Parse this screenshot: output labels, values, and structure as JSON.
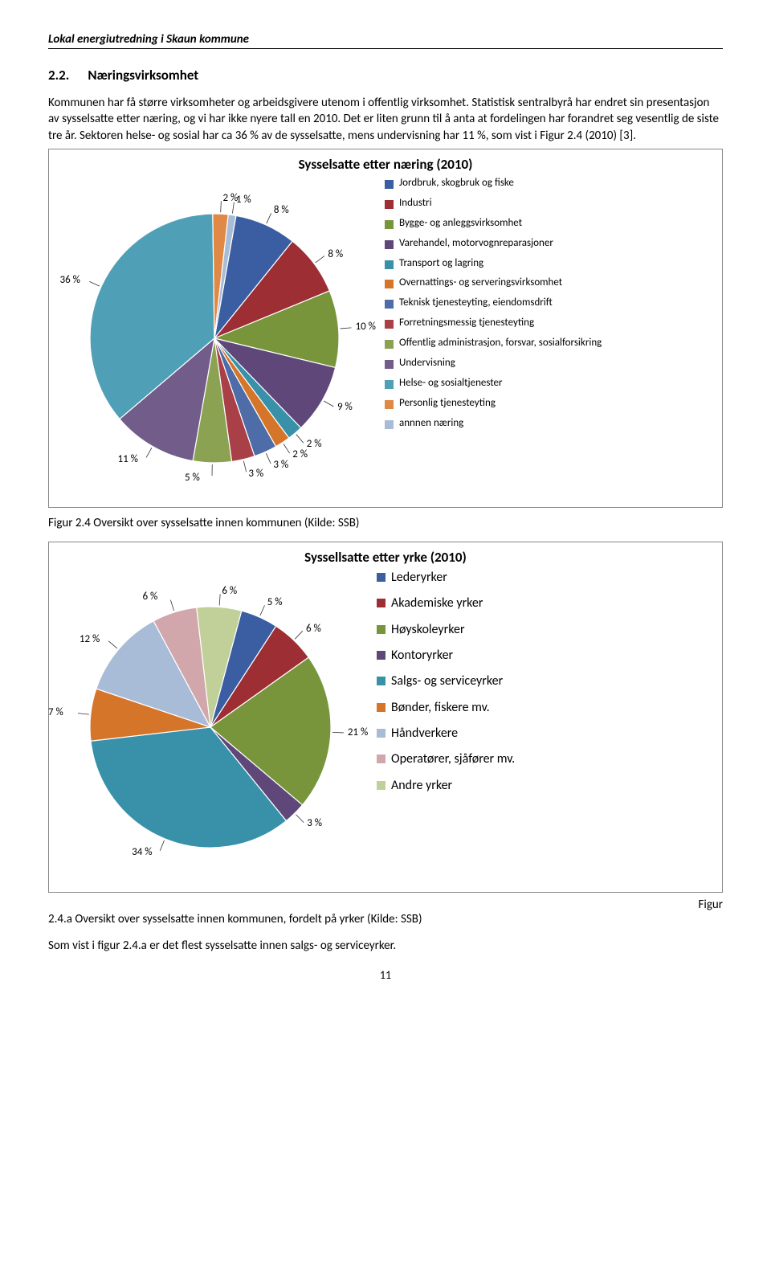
{
  "header": "Lokal energiutredning i Skaun kommune",
  "section_number": "2.2.",
  "section_title": "Næringsvirksomhet",
  "paragraph": "Kommunen har få større virksomheter og arbeidsgivere utenom i offentlig virksomhet. Statistisk sentralbyrå har endret sin presentasjon av sysselsatte etter næring, og vi har ikke nyere tall en 2010. Det er liten grunn til å anta at fordelingen har forandret seg vesentlig de siste tre år. Sektoren helse- og sosial har ca 36 % av de sysselsatte, mens undervisning har 11 %, som vist i Figur 2.4 (2010) [3].",
  "chart1": {
    "title": "Sysselsatte etter næring (2010)",
    "type": "pie",
    "background_color": "#ffffff",
    "slices": [
      {
        "label": "Jordbruk, skogbruk og fiske",
        "value": 8,
        "color": "#3a5ea1",
        "pct_label": "8 %"
      },
      {
        "label": "Industri",
        "value": 8,
        "color": "#9c2e34",
        "pct_label": "8 %"
      },
      {
        "label": "Bygge- og anleggsvirksomhet",
        "value": 10,
        "color": "#78953c",
        "pct_label": "10 %"
      },
      {
        "label": "Varehandel, motorvognreparasjoner",
        "value": 9,
        "color": "#5f4879",
        "pct_label": "9 %"
      },
      {
        "label": "Transport og lagring",
        "value": 2,
        "color": "#3891a8",
        "pct_label": "2 %"
      },
      {
        "label": "Overnattings- og serveringsvirksomhet",
        "value": 2,
        "color": "#d5752a",
        "pct_label": "2 %"
      },
      {
        "label": "Teknisk tjenesteyting, eiendomsdrift",
        "value": 3,
        "color": "#4e6ca8",
        "pct_label": "3 %"
      },
      {
        "label": "Forretningsmessig tjenesteyting",
        "value": 3,
        "color": "#a94048",
        "pct_label": "3 %"
      },
      {
        "label": "Offentlig administrasjon, forsvar, sosialforsikring",
        "value": 5,
        "color": "#8aa251",
        "pct_label": "5 %"
      },
      {
        "label": "Undervisning",
        "value": 11,
        "color": "#715c8a",
        "pct_label": "11 %"
      },
      {
        "label": "Helse- og sosialtjenester",
        "value": 36,
        "color": "#4fa0b6",
        "pct_label": "36 %"
      },
      {
        "label": "Personlig tjenesteyting",
        "value": 2,
        "color": "#e08846",
        "pct_label": "2 %"
      },
      {
        "label": "annnen næring",
        "value": 1,
        "color": "#a9bcd7",
        "pct_label": "1 %"
      }
    ]
  },
  "caption1": "Figur 2.4 Oversikt over sysselsatte innen kommunen (Kilde: SSB)",
  "chart2": {
    "title": "Syssellsatte etter yrke (2010)",
    "type": "pie",
    "background_color": "#ffffff",
    "slices": [
      {
        "label": "Lederyrker",
        "value": 5,
        "color": "#3a5ea1",
        "pct_label": "5 %"
      },
      {
        "label": "Akademiske yrker",
        "value": 6,
        "color": "#9c2e34",
        "pct_label": "6 %"
      },
      {
        "label": "Høyskoleyrker",
        "value": 21,
        "color": "#78953c",
        "pct_label": "21 %"
      },
      {
        "label": "Kontoryrker",
        "value": 3,
        "color": "#5f4879",
        "pct_label": "3 %"
      },
      {
        "label": "Salgs- og serviceyrker",
        "value": 34,
        "color": "#3891a8",
        "pct_label": "34 %"
      },
      {
        "label": "Bønder, fiskere mv.",
        "value": 7,
        "color": "#d5752a",
        "pct_label": "7 %"
      },
      {
        "label": "Håndverkere",
        "value": 12,
        "color": "#a9bcd7",
        "pct_label": "12 %"
      },
      {
        "label": "Operatører, sjåfører mv.",
        "value": 6,
        "color": "#d1a7ab",
        "pct_label": "6 %"
      },
      {
        "label": "Andre yrker",
        "value": 6,
        "color": "#c1d098",
        "pct_label": "6 %"
      }
    ]
  },
  "caption2_right": "Figur",
  "caption2": "2.4.a Oversikt over sysselsatte innen kommunen, fordelt på yrker (Kilde: SSB)",
  "closing": "Som vist i figur 2.4.a er det flest sysselsatte innen salgs- og serviceyrker.",
  "page_number": "11"
}
